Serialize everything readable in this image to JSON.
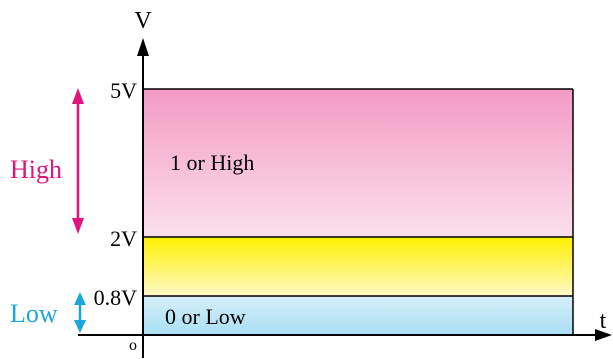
{
  "axes": {
    "y_label": "V",
    "x_label": "t",
    "origin_label": "o"
  },
  "levels": {
    "top": "5V",
    "high_min": "2V",
    "low_max": "0.8V"
  },
  "regions": {
    "high_text": "1 or High",
    "low_text": "0 or Low"
  },
  "side_labels": {
    "high": "High",
    "low": "Low"
  },
  "colors": {
    "high_region_top": "#f39bc4",
    "high_region_bottom": "#fbe0ec",
    "mid_region_top": "#fff000",
    "mid_region_bottom": "#fff8c8",
    "low_region_top": "#d6eef9",
    "low_region_bottom": "#a9dff5",
    "high_accent": "#e0147d",
    "low_accent": "#1ca6dc",
    "axis": "#000000"
  }
}
